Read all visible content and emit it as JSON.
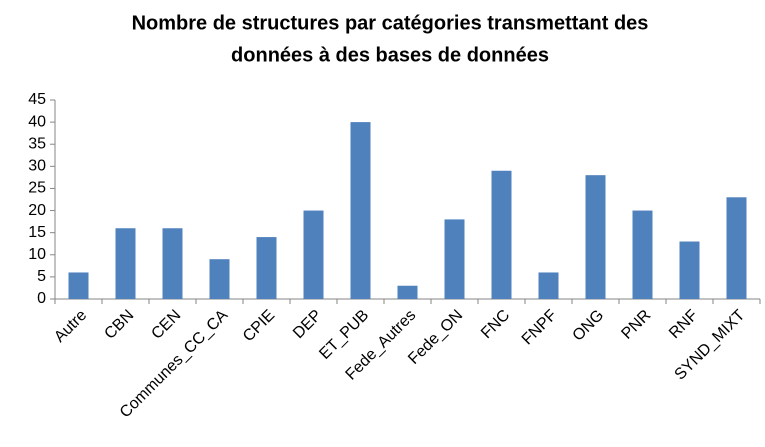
{
  "chart_data": {
    "type": "bar",
    "title": [
      "Nombre de structures par catégories transmettant des",
      "données à des bases de données"
    ],
    "categories": [
      "Autre",
      "CBN",
      "CEN",
      "Communes_CC_CA",
      "CPIE",
      "DEP",
      "ET_PUB",
      "Fede_Autres",
      "Fede_ON",
      "FNC",
      "FNPF",
      "ONG",
      "PNR",
      "RNF",
      "SYND_MIXT"
    ],
    "values": [
      6,
      16,
      16,
      9,
      14,
      20,
      40,
      3,
      18,
      29,
      6,
      28,
      20,
      13,
      23
    ],
    "color": "#4f81bd",
    "ylim": [
      0,
      45
    ],
    "yticks": [
      0,
      5,
      10,
      15,
      20,
      25,
      30,
      35,
      40,
      45
    ],
    "grid": false
  }
}
